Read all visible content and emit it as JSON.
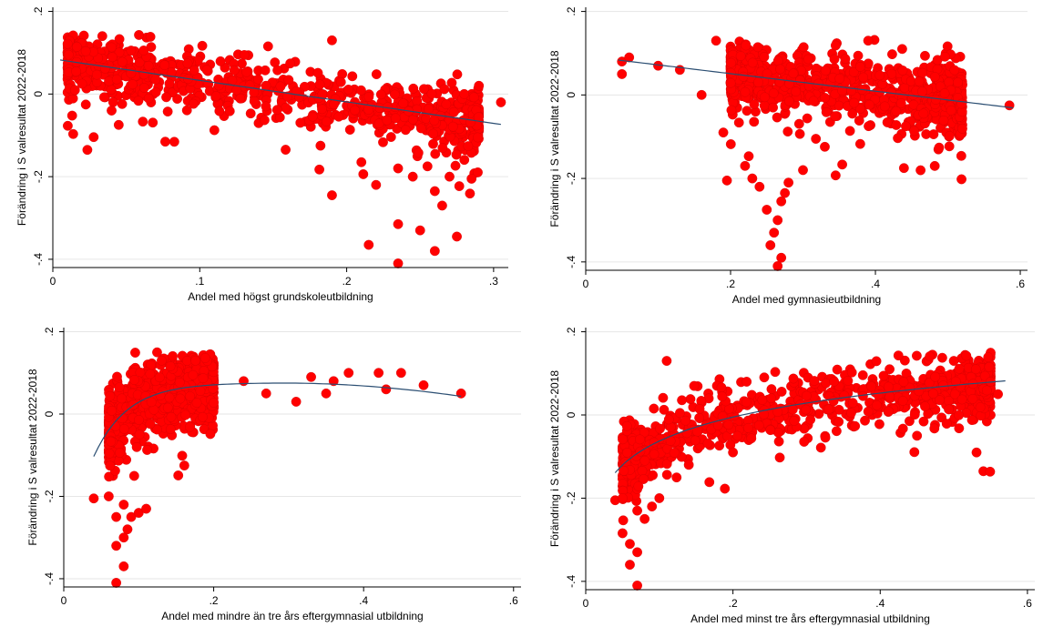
{
  "colors": {
    "marker": "#ff0000",
    "fit_line": "#2b4e72",
    "axis": "#000000",
    "grid": "#e6e6e6"
  },
  "chart_data": [
    {
      "type": "scatter",
      "xlabel": "Andel med högst grundskoleutbildning",
      "ylabel": "Förändring i S valresultat 2022-2018",
      "xlim": [
        0,
        0.31
      ],
      "ylim": [
        -0.42,
        0.21
      ],
      "xticks": [
        {
          "v": 0,
          "label": "0"
        },
        {
          "v": 0.1,
          "label": ".1"
        },
        {
          "v": 0.2,
          "label": ".2"
        },
        {
          "v": 0.3,
          "label": ".3"
        }
      ],
      "yticks": [
        {
          "v": -0.4,
          "label": "-.4"
        },
        {
          "v": -0.2,
          "label": "-.2"
        },
        {
          "v": 0,
          "label": "0"
        },
        {
          "v": 0.2,
          "label": ".2"
        }
      ],
      "grid": true,
      "legend": "none",
      "cloud": {
        "x_min": 0.01,
        "x_max": 0.29,
        "n": 900,
        "center": {
          "a": 0.085,
          "b": -0.52
        },
        "spread": 0.035,
        "outlier_share": 0.04
      },
      "points": [
        {
          "x": 0.04,
          "y": -0.04
        },
        {
          "x": 0.19,
          "y": 0.13
        },
        {
          "x": 0.215,
          "y": -0.365
        },
        {
          "x": 0.235,
          "y": -0.41
        },
        {
          "x": 0.235,
          "y": -0.315
        },
        {
          "x": 0.25,
          "y": -0.33
        },
        {
          "x": 0.26,
          "y": -0.38
        },
        {
          "x": 0.265,
          "y": -0.27
        },
        {
          "x": 0.275,
          "y": -0.345
        },
        {
          "x": 0.19,
          "y": -0.245
        },
        {
          "x": 0.22,
          "y": -0.22
        },
        {
          "x": 0.245,
          "y": -0.2
        },
        {
          "x": 0.26,
          "y": -0.235
        },
        {
          "x": 0.27,
          "y": -0.2
        },
        {
          "x": 0.285,
          "y": -0.205
        },
        {
          "x": 0.255,
          "y": -0.175
        },
        {
          "x": 0.21,
          "y": -0.165
        },
        {
          "x": 0.305,
          "y": -0.02
        },
        {
          "x": 0.29,
          "y": 0.02
        },
        {
          "x": 0.28,
          "y": 0.0
        },
        {
          "x": 0.235,
          "y": -0.18
        }
      ],
      "fit": {
        "kind": "linear",
        "a": 0.085,
        "b": -0.52,
        "x_from": 0.005,
        "x_to": 0.305
      }
    },
    {
      "type": "scatter",
      "xlabel": "Andel med gymnasieutbildning",
      "ylabel": "Förändring i S valresultat 2022-2018",
      "xlim": [
        0,
        0.61
      ],
      "ylim": [
        -0.42,
        0.21
      ],
      "xticks": [
        {
          "v": 0,
          "label": "0"
        },
        {
          "v": 0.2,
          "label": ".2"
        },
        {
          "v": 0.4,
          "label": ".4"
        },
        {
          "v": 0.6,
          "label": ".6"
        }
      ],
      "yticks": [
        {
          "v": -0.4,
          "label": "-.4"
        },
        {
          "v": -0.2,
          "label": "-.2"
        },
        {
          "v": 0,
          "label": "0"
        },
        {
          "v": 0.2,
          "label": ".2"
        }
      ],
      "grid": true,
      "legend": "none",
      "cloud": {
        "x_min": 0.2,
        "x_max": 0.52,
        "n": 900,
        "center": {
          "a": 0.09,
          "b": -0.2
        },
        "spread": 0.04,
        "outlier_share": 0.03
      },
      "points": [
        {
          "x": 0.05,
          "y": 0.08
        },
        {
          "x": 0.06,
          "y": 0.09
        },
        {
          "x": 0.05,
          "y": 0.05
        },
        {
          "x": 0.1,
          "y": 0.07
        },
        {
          "x": 0.13,
          "y": 0.06
        },
        {
          "x": 0.195,
          "y": -0.205
        },
        {
          "x": 0.265,
          "y": -0.41
        },
        {
          "x": 0.27,
          "y": -0.39
        },
        {
          "x": 0.255,
          "y": -0.36
        },
        {
          "x": 0.26,
          "y": -0.33
        },
        {
          "x": 0.265,
          "y": -0.3
        },
        {
          "x": 0.25,
          "y": -0.275
        },
        {
          "x": 0.27,
          "y": -0.255
        },
        {
          "x": 0.275,
          "y": -0.235
        },
        {
          "x": 0.24,
          "y": -0.22
        },
        {
          "x": 0.23,
          "y": -0.2
        },
        {
          "x": 0.28,
          "y": -0.21
        },
        {
          "x": 0.22,
          "y": -0.17
        },
        {
          "x": 0.3,
          "y": -0.18
        },
        {
          "x": 0.585,
          "y": -0.025
        },
        {
          "x": 0.19,
          "y": -0.09
        },
        {
          "x": 0.16,
          "y": 0.0
        },
        {
          "x": 0.18,
          "y": 0.13
        },
        {
          "x": 0.39,
          "y": 0.13
        }
      ],
      "fit": {
        "kind": "linear",
        "a": 0.093,
        "b": -0.21,
        "x_from": 0.045,
        "x_to": 0.59
      }
    },
    {
      "type": "scatter",
      "xlabel": "Andel med mindre än tre års eftergymnasial utbildning",
      "ylabel": "Förändring i S valresultat 2022-2018",
      "xlim": [
        0,
        0.61
      ],
      "ylim": [
        -0.42,
        0.21
      ],
      "xticks": [
        {
          "v": 0,
          "label": "0"
        },
        {
          "v": 0.2,
          "label": ".2"
        },
        {
          "v": 0.4,
          "label": ".4"
        },
        {
          "v": 0.6,
          "label": ".6"
        }
      ],
      "yticks": [
        {
          "v": -0.4,
          "label": "-.4"
        },
        {
          "v": -0.2,
          "label": "-.2"
        },
        {
          "v": 0,
          "label": "0"
        },
        {
          "v": 0.2,
          "label": ".2"
        }
      ],
      "grid": true,
      "legend": "none",
      "cloud": {
        "x_min": 0.06,
        "x_max": 0.2,
        "n": 900,
        "center": {
          "kind": "concave",
          "peak_x": 0.28,
          "peak_y": 0.076
        },
        "spread": 0.045,
        "outlier_share": 0.02
      },
      "points": [
        {
          "x": 0.04,
          "y": -0.205
        },
        {
          "x": 0.06,
          "y": -0.2
        },
        {
          "x": 0.07,
          "y": -0.41
        },
        {
          "x": 0.07,
          "y": -0.32
        },
        {
          "x": 0.08,
          "y": -0.37
        },
        {
          "x": 0.08,
          "y": -0.3
        },
        {
          "x": 0.085,
          "y": -0.28
        },
        {
          "x": 0.09,
          "y": -0.25
        },
        {
          "x": 0.1,
          "y": -0.24
        },
        {
          "x": 0.11,
          "y": -0.23
        },
        {
          "x": 0.08,
          "y": -0.22
        },
        {
          "x": 0.07,
          "y": -0.25
        },
        {
          "x": 0.24,
          "y": 0.08
        },
        {
          "x": 0.27,
          "y": 0.05
        },
        {
          "x": 0.31,
          "y": 0.03
        },
        {
          "x": 0.33,
          "y": 0.09
        },
        {
          "x": 0.35,
          "y": 0.05
        },
        {
          "x": 0.38,
          "y": 0.1
        },
        {
          "x": 0.42,
          "y": 0.1
        },
        {
          "x": 0.43,
          "y": 0.06
        },
        {
          "x": 0.45,
          "y": 0.1
        },
        {
          "x": 0.48,
          "y": 0.07
        },
        {
          "x": 0.53,
          "y": 0.05
        },
        {
          "x": 0.36,
          "y": 0.08
        }
      ],
      "fit": {
        "kind": "concave",
        "peak_x": 0.28,
        "peak_y": 0.076,
        "x_from": 0.04,
        "x_to": 0.53
      }
    },
    {
      "type": "scatter",
      "xlabel": "Andel med minst tre års eftergymnasial utbildning",
      "ylabel": "Förändring i S valresultat 2022-2018",
      "xlim": [
        0,
        0.61
      ],
      "ylim": [
        -0.42,
        0.21
      ],
      "xticks": [
        {
          "v": 0,
          "label": "0"
        },
        {
          "v": 0.2,
          "label": ".2"
        },
        {
          "v": 0.4,
          "label": ".4"
        },
        {
          "v": 0.6,
          "label": ".6"
        }
      ],
      "yticks": [
        {
          "v": -0.4,
          "label": "-.4"
        },
        {
          "v": -0.2,
          "label": "-.2"
        },
        {
          "v": 0,
          "label": "0"
        },
        {
          "v": 0.2,
          "label": ".2"
        }
      ],
      "grid": true,
      "legend": "none",
      "cloud": {
        "x_min": 0.05,
        "x_max": 0.55,
        "n": 900,
        "center": {
          "kind": "log",
          "x0": 0.035,
          "y_end": 0.082,
          "x_end": 0.57,
          "y_start": -0.15
        },
        "spread": 0.04,
        "outlier_share": 0.02
      },
      "points": [
        {
          "x": 0.04,
          "y": -0.205
        },
        {
          "x": 0.05,
          "y": -0.2
        },
        {
          "x": 0.07,
          "y": -0.41
        },
        {
          "x": 0.06,
          "y": -0.36
        },
        {
          "x": 0.07,
          "y": -0.33
        },
        {
          "x": 0.06,
          "y": -0.31
        },
        {
          "x": 0.08,
          "y": -0.25
        },
        {
          "x": 0.09,
          "y": -0.22
        },
        {
          "x": 0.1,
          "y": -0.2
        },
        {
          "x": 0.07,
          "y": -0.23
        },
        {
          "x": 0.11,
          "y": 0.13
        },
        {
          "x": 0.45,
          "y": -0.05
        },
        {
          "x": 0.56,
          "y": 0.05
        },
        {
          "x": 0.55,
          "y": 0.08
        },
        {
          "x": 0.53,
          "y": 0.11
        },
        {
          "x": 0.5,
          "y": 0.13
        },
        {
          "x": 0.14,
          "y": -0.12
        },
        {
          "x": 0.2,
          "y": -0.09
        }
      ],
      "fit": {
        "kind": "log",
        "x0": 0.035,
        "y_start": -0.15,
        "y_end": 0.082,
        "x_from": 0.04,
        "x_to": 0.57
      }
    }
  ]
}
